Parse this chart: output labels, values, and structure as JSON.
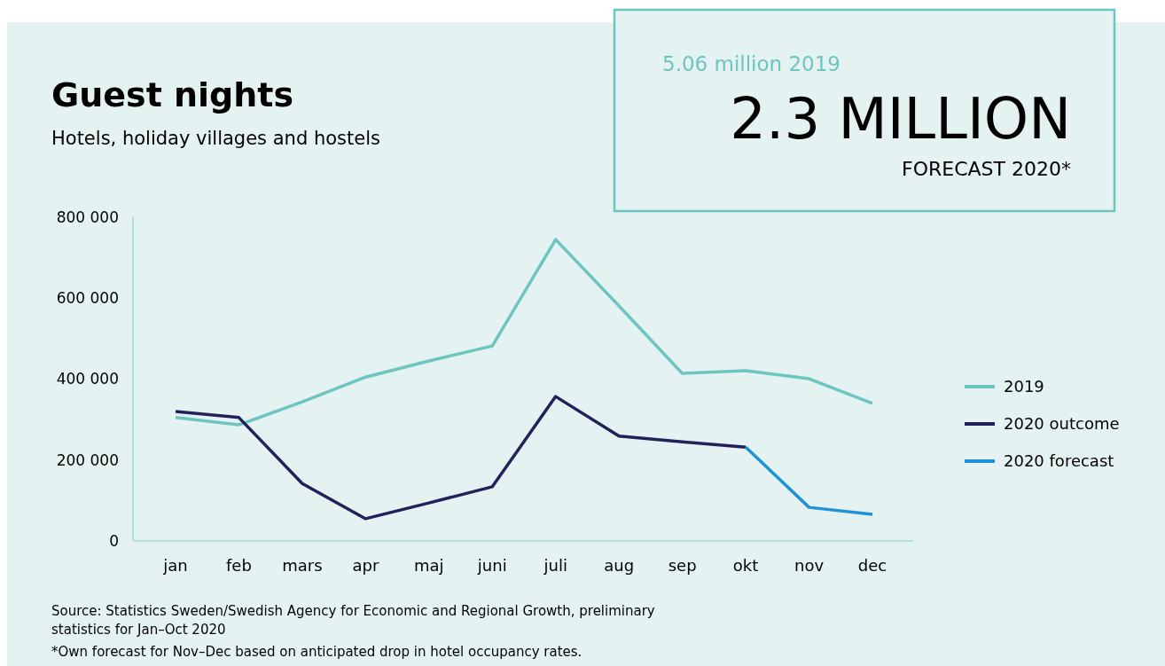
{
  "chart_data": {
    "type": "line",
    "title": "Guest nights",
    "subtitle": "Hotels, holiday villages and hostels",
    "categories": [
      "jan",
      "feb",
      "mars",
      "apr",
      "maj",
      "juni",
      "juli",
      "aug",
      "sep",
      "okt",
      "nov",
      "dec"
    ],
    "series": [
      {
        "name": "2019",
        "color": "#6cc5c0",
        "values": [
          305000,
          287000,
          344000,
          405000,
          445000,
          482000,
          745000,
          581000,
          414000,
          421000,
          401000,
          340000
        ]
      },
      {
        "name": "2020 outcome",
        "color": "#23215a",
        "values": [
          320000,
          305000,
          142000,
          55000,
          94000,
          134000,
          357000,
          259000,
          245000,
          232000,
          null,
          null
        ]
      },
      {
        "name": "2020 forecast",
        "color": "#1f93d6",
        "values": [
          null,
          null,
          null,
          null,
          null,
          null,
          null,
          null,
          null,
          232000,
          83000,
          66000
        ]
      }
    ],
    "ylim": [
      0,
      800000
    ],
    "yticks": [
      {
        "value": 0,
        "label": "0"
      },
      {
        "value": 200000,
        "label": "200 000"
      },
      {
        "value": 400000,
        "label": "400 000"
      },
      {
        "value": 600000,
        "label": "600 000"
      },
      {
        "value": 800000,
        "label": "800 000"
      }
    ],
    "grid": false,
    "legend": "right",
    "marker": "none",
    "line_style": "solid",
    "annotations": [
      "5.06 million 2019",
      "2.3 MILLION",
      "FORECAST 2020*",
      "Source: Statistics Sweden/Swedish Agency for Economic and Regional Growth, preliminary statistics for Jan–Oct 2020",
      "*Own forecast for Nov–Dec based on anticipated drop in hotel occupancy rates."
    ]
  }
}
